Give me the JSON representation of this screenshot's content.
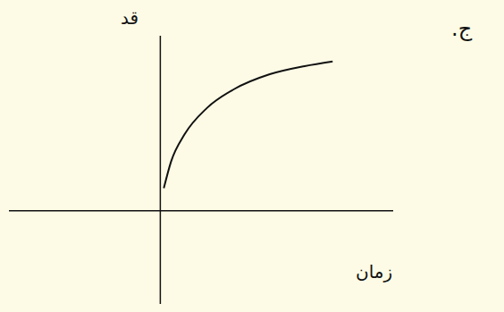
{
  "chart_data": {
    "type": "line",
    "title": "ج.",
    "x_label": "زمان",
    "y_label": "قد",
    "x": [
      0.15,
      0.46,
      1.04,
      2.0,
      3.15,
      4.7,
      6.2,
      7.4
    ],
    "values": [
      0.96,
      2.1,
      3.27,
      4.4,
      5.2,
      5.85,
      6.2,
      6.4
    ],
    "xlim": [
      -6.5,
      10
    ],
    "ylim": [
      -4,
      7.5
    ],
    "tick_labels": false,
    "color": "#111111"
  }
}
